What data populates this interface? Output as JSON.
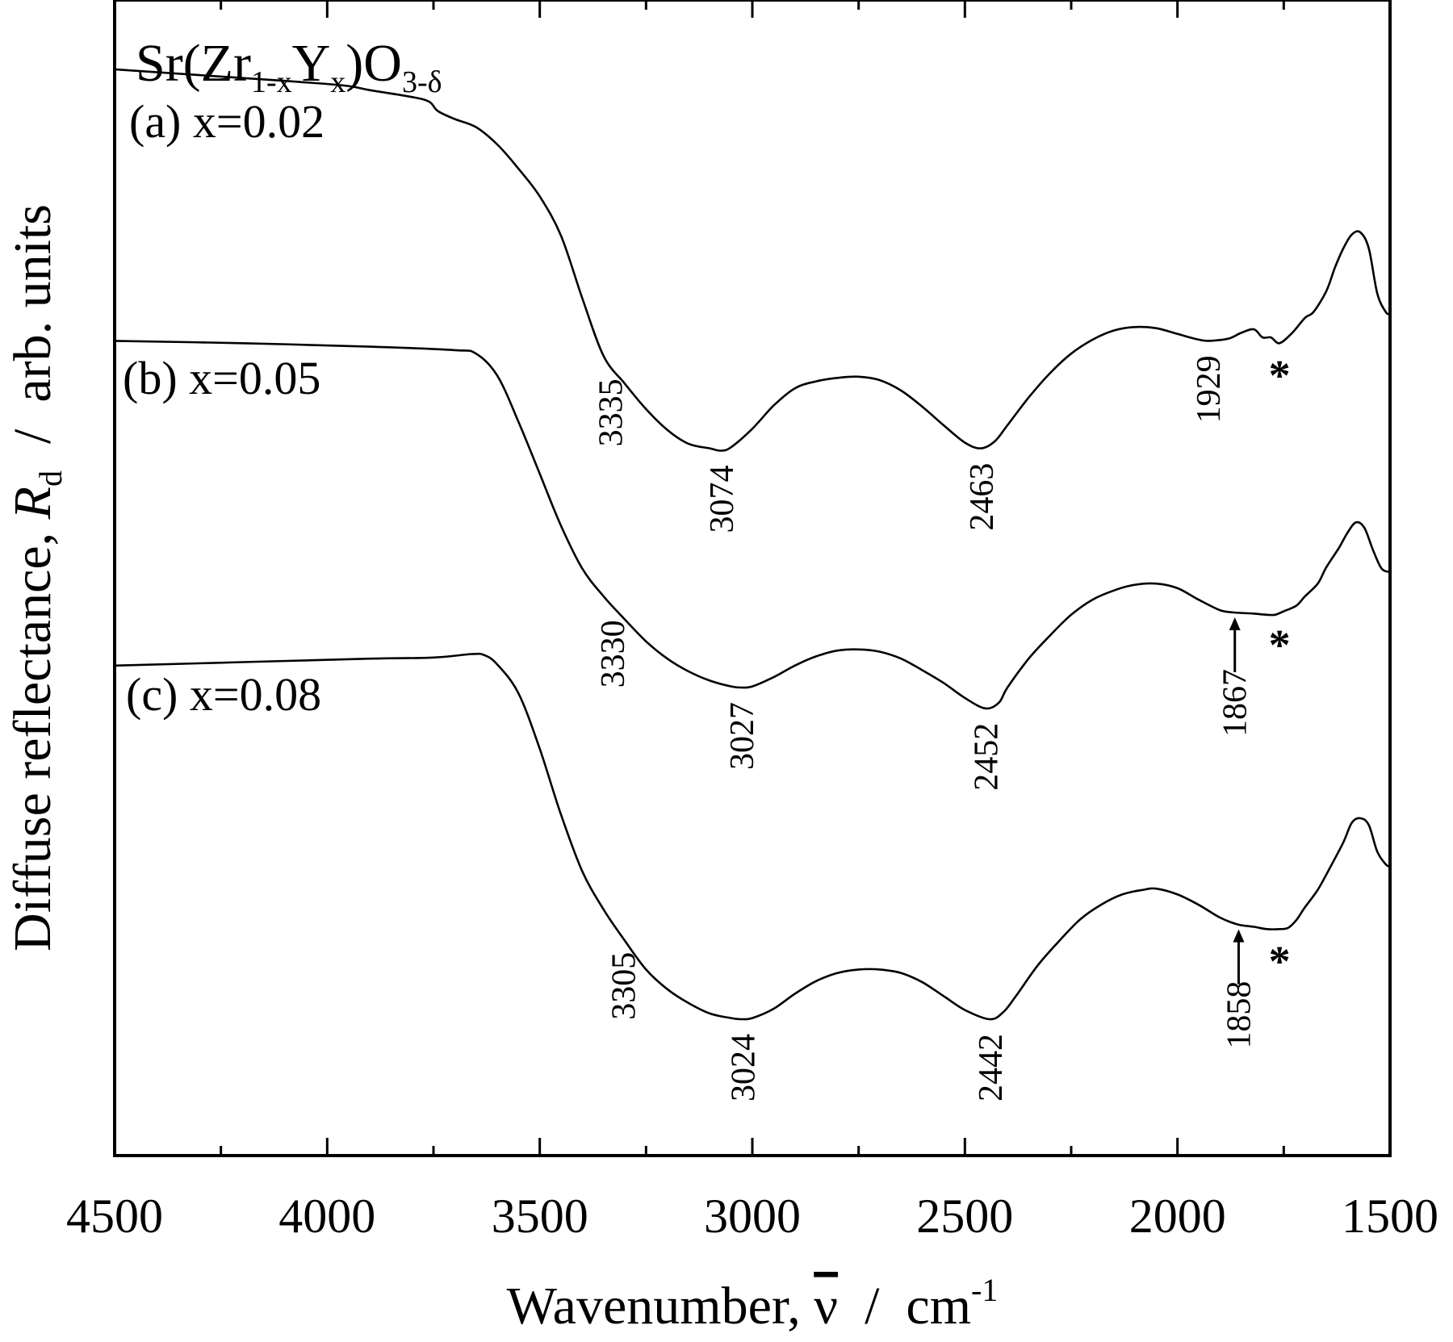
{
  "chart_data": {
    "type": "line",
    "title": "",
    "formula": {
      "base": "Sr(Zr",
      "sub1": "1-x",
      "mid": "Y",
      "sub2": "x",
      "close": ")O",
      "sub3": "3-δ"
    },
    "xlabel": {
      "main": "Wavenumber, ",
      "symbol": "ν",
      "sep": "  /  cm",
      "sup": "-1"
    },
    "ylabel": {
      "main": "Diffuse reflectance, ",
      "symbol": "R",
      "sub": "d",
      "rest": "  /  arb. units"
    },
    "xlim": [
      4500,
      1500
    ],
    "x_reversed": true,
    "x_ticks": [
      4500,
      4000,
      3500,
      3000,
      2500,
      2000,
      1500
    ],
    "x_tick_labels": [
      "4500",
      "4000",
      "3500",
      "3000",
      "2500",
      "2000",
      "1500"
    ],
    "ylim": [
      0,
      100
    ],
    "y_ticks_shown": false,
    "grid": false,
    "series": [
      {
        "name": "(a) x=0.02",
        "points": [
          [
            4500,
            94
          ],
          [
            4300,
            93.5
          ],
          [
            4100,
            93
          ],
          [
            3960,
            92.6
          ],
          [
            3900,
            92.2
          ],
          [
            3800,
            91.6
          ],
          [
            3760,
            91.2
          ],
          [
            3740,
            90.4
          ],
          [
            3700,
            89.7
          ],
          [
            3650,
            89
          ],
          [
            3600,
            87.5
          ],
          [
            3550,
            85.4
          ],
          [
            3500,
            83
          ],
          [
            3450,
            79.6
          ],
          [
            3400,
            74.2
          ],
          [
            3350,
            69.2
          ],
          [
            3300,
            66.8
          ],
          [
            3250,
            64.6
          ],
          [
            3200,
            62.8
          ],
          [
            3150,
            61.6
          ],
          [
            3100,
            61.2
          ],
          [
            3074,
            61
          ],
          [
            3050,
            61.3
          ],
          [
            3000,
            62.9
          ],
          [
            2950,
            64.9
          ],
          [
            2900,
            66.4
          ],
          [
            2850,
            67
          ],
          [
            2800,
            67.3
          ],
          [
            2750,
            67.4
          ],
          [
            2700,
            67.1
          ],
          [
            2650,
            66.2
          ],
          [
            2600,
            64.8
          ],
          [
            2550,
            63.2
          ],
          [
            2500,
            61.7
          ],
          [
            2463,
            61.2
          ],
          [
            2430,
            61.8
          ],
          [
            2400,
            63.2
          ],
          [
            2350,
            65.6
          ],
          [
            2300,
            67.7
          ],
          [
            2250,
            69.4
          ],
          [
            2200,
            70.6
          ],
          [
            2150,
            71.4
          ],
          [
            2100,
            71.7
          ],
          [
            2050,
            71.6
          ],
          [
            2000,
            71.1
          ],
          [
            1960,
            70.7
          ],
          [
            1929,
            70.5
          ],
          [
            1880,
            70.7
          ],
          [
            1850,
            71.2
          ],
          [
            1820,
            71.5
          ],
          [
            1800,
            70.8
          ],
          [
            1780,
            70.8
          ],
          [
            1760,
            70.3
          ],
          [
            1730,
            71.2
          ],
          [
            1700,
            72.5
          ],
          [
            1680,
            73
          ],
          [
            1650,
            74.8
          ],
          [
            1630,
            76.8
          ],
          [
            1610,
            78.5
          ],
          [
            1590,
            79.7
          ],
          [
            1570,
            79.9
          ],
          [
            1550,
            78.5
          ],
          [
            1530,
            74.6
          ],
          [
            1510,
            73
          ],
          [
            1500,
            72.8
          ]
        ]
      },
      {
        "name": "(b) x=0.05",
        "points": [
          [
            4500,
            70.5
          ],
          [
            4200,
            70.3
          ],
          [
            3900,
            70
          ],
          [
            3700,
            69.7
          ],
          [
            3650,
            69.4
          ],
          [
            3600,
            67.5
          ],
          [
            3550,
            63.5
          ],
          [
            3500,
            59
          ],
          [
            3450,
            54.5
          ],
          [
            3400,
            50.8
          ],
          [
            3350,
            48.4
          ],
          [
            3300,
            46.4
          ],
          [
            3250,
            44.5
          ],
          [
            3200,
            43
          ],
          [
            3150,
            41.9
          ],
          [
            3100,
            41.1
          ],
          [
            3050,
            40.6
          ],
          [
            3027,
            40.5
          ],
          [
            3000,
            40.6
          ],
          [
            2950,
            41.4
          ],
          [
            2900,
            42.4
          ],
          [
            2850,
            43.2
          ],
          [
            2800,
            43.7
          ],
          [
            2750,
            43.8
          ],
          [
            2700,
            43.6
          ],
          [
            2650,
            43
          ],
          [
            2600,
            42
          ],
          [
            2550,
            40.9
          ],
          [
            2500,
            39.6
          ],
          [
            2452,
            38.7
          ],
          [
            2420,
            39.2
          ],
          [
            2400,
            40.5
          ],
          [
            2350,
            43
          ],
          [
            2300,
            45
          ],
          [
            2250,
            46.8
          ],
          [
            2200,
            48.1
          ],
          [
            2150,
            48.9
          ],
          [
            2100,
            49.4
          ],
          [
            2050,
            49.5
          ],
          [
            2000,
            49.1
          ],
          [
            1950,
            48.1
          ],
          [
            1900,
            47.2
          ],
          [
            1867,
            47
          ],
          [
            1820,
            46.9
          ],
          [
            1790,
            46.8
          ],
          [
            1770,
            46.8
          ],
          [
            1750,
            47.1
          ],
          [
            1720,
            47.6
          ],
          [
            1700,
            48.4
          ],
          [
            1670,
            49.5
          ],
          [
            1650,
            50.9
          ],
          [
            1620,
            52.6
          ],
          [
            1600,
            53.9
          ],
          [
            1580,
            54.8
          ],
          [
            1560,
            54.3
          ],
          [
            1540,
            52.4
          ],
          [
            1520,
            50.8
          ],
          [
            1500,
            50.5
          ]
        ]
      },
      {
        "name": "(c) x=0.08",
        "points": [
          [
            4500,
            42.4
          ],
          [
            4200,
            42.7
          ],
          [
            3900,
            43
          ],
          [
            3750,
            43.1
          ],
          [
            3660,
            43.4
          ],
          [
            3630,
            43.3
          ],
          [
            3600,
            42.5
          ],
          [
            3550,
            40
          ],
          [
            3500,
            35.2
          ],
          [
            3450,
            29.5
          ],
          [
            3400,
            24.6
          ],
          [
            3350,
            21.3
          ],
          [
            3300,
            18.6
          ],
          [
            3250,
            16.1
          ],
          [
            3200,
            14.4
          ],
          [
            3150,
            13.2
          ],
          [
            3100,
            12.3
          ],
          [
            3050,
            11.9
          ],
          [
            3024,
            11.8
          ],
          [
            3000,
            11.9
          ],
          [
            2950,
            12.7
          ],
          [
            2900,
            14
          ],
          [
            2850,
            15.1
          ],
          [
            2800,
            15.8
          ],
          [
            2750,
            16.1
          ],
          [
            2700,
            16.1
          ],
          [
            2650,
            15.8
          ],
          [
            2600,
            15
          ],
          [
            2550,
            13.8
          ],
          [
            2500,
            12.6
          ],
          [
            2442,
            11.8
          ],
          [
            2410,
            12.4
          ],
          [
            2380,
            13.8
          ],
          [
            2330,
            16.4
          ],
          [
            2280,
            18.5
          ],
          [
            2230,
            20.4
          ],
          [
            2180,
            21.7
          ],
          [
            2130,
            22.6
          ],
          [
            2080,
            23
          ],
          [
            2050,
            23.1
          ],
          [
            2000,
            22.6
          ],
          [
            1950,
            21.7
          ],
          [
            1900,
            20.6
          ],
          [
            1858,
            20
          ],
          [
            1820,
            19.8
          ],
          [
            1790,
            19.6
          ],
          [
            1760,
            19.6
          ],
          [
            1740,
            19.7
          ],
          [
            1720,
            20.4
          ],
          [
            1700,
            21.5
          ],
          [
            1670,
            23
          ],
          [
            1640,
            25
          ],
          [
            1610,
            27.1
          ],
          [
            1590,
            28.8
          ],
          [
            1570,
            29.2
          ],
          [
            1550,
            28.6
          ],
          [
            1530,
            26.3
          ],
          [
            1510,
            25.2
          ],
          [
            1500,
            25
          ]
        ]
      }
    ],
    "peak_labels": [
      {
        "series": 0,
        "text": "3335",
        "x": 3335
      },
      {
        "series": 0,
        "text": "3074",
        "x": 3074
      },
      {
        "series": 0,
        "text": "2463",
        "x": 2463
      },
      {
        "series": 0,
        "text": "1929",
        "x": 1929
      },
      {
        "series": 1,
        "text": "3330",
        "x": 3330
      },
      {
        "series": 1,
        "text": "3027",
        "x": 3027
      },
      {
        "series": 1,
        "text": "2452",
        "x": 2452
      },
      {
        "series": 1,
        "text": "1867",
        "x": 1867,
        "arrow": true
      },
      {
        "series": 2,
        "text": "3305",
        "x": 3305
      },
      {
        "series": 2,
        "text": "3024",
        "x": 3024
      },
      {
        "series": 2,
        "text": "2442",
        "x": 2442
      },
      {
        "series": 2,
        "text": "1858",
        "x": 1858,
        "arrow": true
      }
    ],
    "annotations": [
      {
        "series": 0,
        "text": "*",
        "x": 1760
      },
      {
        "series": 1,
        "text": "*",
        "x": 1760
      },
      {
        "series": 2,
        "text": "*",
        "x": 1760
      }
    ]
  }
}
